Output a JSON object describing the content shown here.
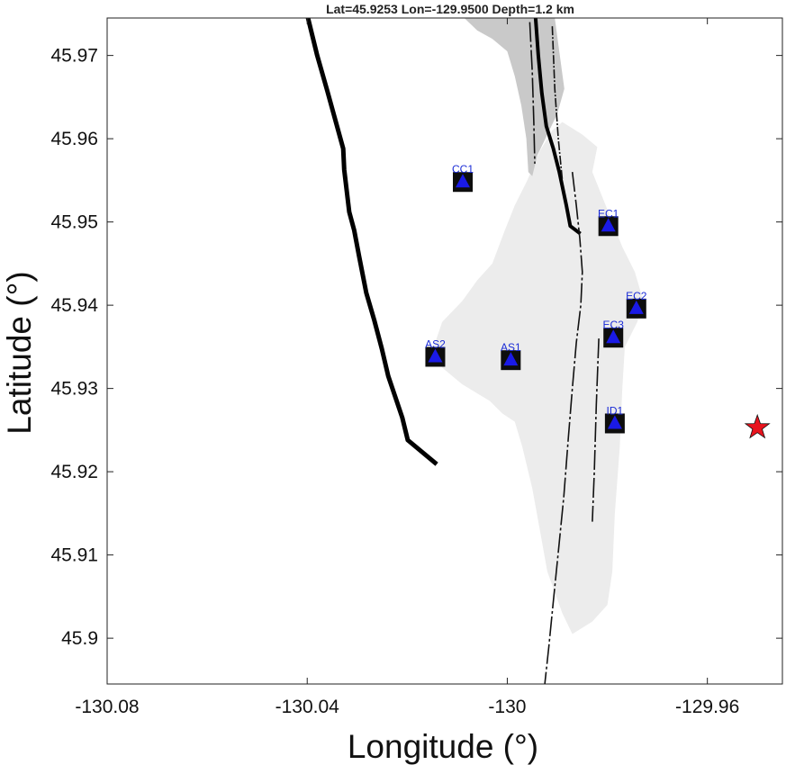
{
  "title": "Lat=45.9253  Lon=-129.9500  Depth=1.2 km",
  "x_axis": {
    "label": "Longitude (°)",
    "range": [
      -130.08,
      -129.945
    ],
    "ticks": [
      {
        "value": -130.08,
        "label": "-130.08"
      },
      {
        "value": -130.04,
        "label": "-130.04"
      },
      {
        "value": -130.0,
        "label": "-130"
      },
      {
        "value": -129.96,
        "label": "-129.96"
      }
    ]
  },
  "y_axis": {
    "label": "Latitude (°)",
    "range": [
      45.8945,
      45.9745
    ],
    "ticks": [
      {
        "value": 45.97,
        "label": "45.97"
      },
      {
        "value": 45.96,
        "label": "45.96"
      },
      {
        "value": 45.95,
        "label": "45.95"
      },
      {
        "value": 45.94,
        "label": "45.94"
      },
      {
        "value": 45.93,
        "label": "45.93"
      },
      {
        "value": 45.92,
        "label": "45.92"
      },
      {
        "value": 45.91,
        "label": "45.91"
      },
      {
        "value": 45.9,
        "label": "45.9"
      }
    ]
  },
  "stations": [
    {
      "name": "CC1",
      "lon": -130.0089,
      "lat": 45.9548
    },
    {
      "name": "EC1",
      "lon": -129.9798,
      "lat": 45.9495
    },
    {
      "name": "EC2",
      "lon": -129.9742,
      "lat": 45.9396
    },
    {
      "name": "EC3",
      "lon": -129.9788,
      "lat": 45.9361
    },
    {
      "name": "AS2",
      "lon": -130.0144,
      "lat": 45.9338
    },
    {
      "name": "AS1",
      "lon": -129.9993,
      "lat": 45.9334
    },
    {
      "name": "ID1",
      "lon": -129.9785,
      "lat": 45.9258
    }
  ],
  "event": {
    "lon": -129.95,
    "lat": 45.9253,
    "depth_km": 1.2,
    "color": "#e8141e"
  },
  "caldera_rim_west": [
    [
      -130.04,
      45.9749
    ],
    [
      -130.038,
      45.97
    ],
    [
      -130.036,
      45.9658
    ],
    [
      -130.0328,
      45.9588
    ],
    [
      -130.0326,
      45.9563
    ],
    [
      -130.0316,
      45.9512
    ],
    [
      -130.0306,
      45.949
    ],
    [
      -130.0296,
      45.9458
    ],
    [
      -130.0282,
      45.9415
    ],
    [
      -130.0266,
      45.9382
    ],
    [
      -130.0251,
      45.9348
    ],
    [
      -130.0238,
      45.9315
    ],
    [
      -130.021,
      45.9265
    ],
    [
      -130.0199,
      45.9238
    ],
    [
      -130.0141,
      45.9209
    ]
  ],
  "caldera_rim_east": [
    [
      -129.9944,
      45.9749
    ],
    [
      -129.9938,
      45.97
    ],
    [
      -129.9931,
      45.9655
    ],
    [
      -129.9922,
      45.9615
    ],
    [
      -129.9908,
      45.9588
    ],
    [
      -129.9896,
      45.956
    ],
    [
      -129.9882,
      45.952
    ],
    [
      -129.9874,
      45.9495
    ],
    [
      -129.9854,
      45.9486
    ]
  ],
  "fissure_lines": [
    [
      [
        -129.9955,
        45.974
      ],
      [
        -129.995,
        45.968
      ],
      [
        -129.9947,
        45.962
      ],
      [
        -129.9945,
        45.957
      ]
    ],
    [
      [
        -129.991,
        45.9735
      ],
      [
        -129.9905,
        45.966
      ],
      [
        -129.9898,
        45.96
      ],
      [
        -129.989,
        45.955
      ]
    ],
    [
      [
        -129.987,
        45.956
      ],
      [
        -129.9862,
        45.952
      ],
      [
        -129.9855,
        45.948
      ],
      [
        -129.985,
        45.944
      ],
      [
        -129.9853,
        45.94
      ],
      [
        -129.9862,
        45.9355
      ],
      [
        -129.987,
        45.93
      ],
      [
        -129.9878,
        45.924
      ],
      [
        -129.9887,
        45.917
      ],
      [
        -129.9897,
        45.911
      ],
      [
        -129.9907,
        45.905
      ],
      [
        -129.9917,
        45.899
      ],
      [
        -129.9925,
        45.8945
      ]
    ],
    [
      [
        -129.9817,
        45.936
      ],
      [
        -129.9822,
        45.928
      ],
      [
        -129.9826,
        45.92
      ],
      [
        -129.983,
        45.914
      ]
    ]
  ],
  "lava_flow_dark": [
    [
      -130.0086,
      45.9745
    ],
    [
      -129.9905,
      45.9745
    ],
    [
      -129.9895,
      45.97
    ],
    [
      -129.9886,
      45.966
    ],
    [
      -129.99,
      45.963
    ],
    [
      -129.992,
      45.9605
    ],
    [
      -129.994,
      45.958
    ],
    [
      -129.995,
      45.9555
    ],
    [
      -129.9958,
      45.956
    ],
    [
      -129.9962,
      45.96
    ],
    [
      -129.9972,
      45.964
    ],
    [
      -129.9985,
      45.9675
    ],
    [
      -130.0,
      45.9705
    ],
    [
      -130.003,
      45.972
    ],
    [
      -130.006,
      45.973
    ]
  ],
  "lava_flow_light": [
    [
      -129.989,
      45.962
    ],
    [
      -129.985,
      45.9605
    ],
    [
      -129.982,
      45.959
    ],
    [
      -129.983,
      45.956
    ],
    [
      -129.981,
      45.953
    ],
    [
      -129.979,
      45.95
    ],
    [
      -129.977,
      45.947
    ],
    [
      -129.9745,
      45.944
    ],
    [
      -129.9728,
      45.9405
    ],
    [
      -129.974,
      45.938
    ],
    [
      -129.9765,
      45.935
    ],
    [
      -129.977,
      45.93
    ],
    [
      -129.9775,
      45.923
    ],
    [
      -129.9785,
      45.915
    ],
    [
      -129.979,
      45.908
    ],
    [
      -129.98,
      45.904
    ],
    [
      -129.983,
      45.902
    ],
    [
      -129.987,
      45.9005
    ],
    [
      -129.989,
      45.903
    ],
    [
      -129.992,
      45.908
    ],
    [
      -129.9935,
      45.913
    ],
    [
      -129.995,
      45.918
    ],
    [
      -129.997,
      45.923
    ],
    [
      -129.9985,
      45.926
    ],
    [
      -130.001,
      45.927
    ],
    [
      -130.0035,
      45.9285
    ],
    [
      -130.009,
      45.9305
    ],
    [
      -130.013,
      45.9325
    ],
    [
      -130.015,
      45.9345
    ],
    [
      -130.013,
      45.938
    ],
    [
      -130.009,
      45.9405
    ],
    [
      -130.006,
      45.943
    ],
    [
      -130.003,
      45.945
    ],
    [
      -130.0005,
      45.949
    ],
    [
      -129.9985,
      45.952
    ],
    [
      -129.996,
      45.955
    ],
    [
      -129.9935,
      45.9585
    ],
    [
      -129.991,
      45.961
    ]
  ],
  "colors": {
    "station_square": "#0d0d0d",
    "station_triangle": "#1a1ae6",
    "station_label": "#1a2bd6",
    "lava_dark": "#c9c9c9",
    "lava_light": "#ececec",
    "rim": "#000000"
  }
}
